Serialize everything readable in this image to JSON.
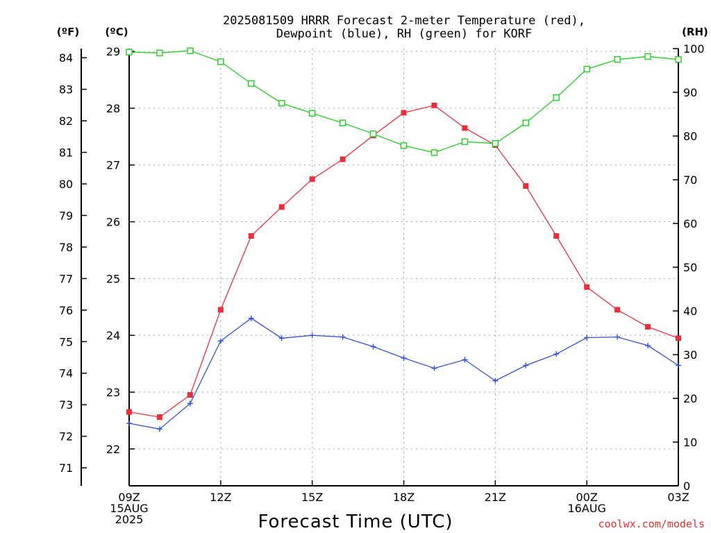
{
  "chart_data": {
    "type": "line",
    "title_line1": "2025081509 HRRR Forecast 2-meter Temperature (red),",
    "title_line2": "Dewpoint (blue), RH (green) for KORF",
    "xlabel": "Forecast Time (UTC)",
    "credit": "coolwx.com/models",
    "units": {
      "f": "(ºF)",
      "c": "(ºC)",
      "rh": "(RH)"
    },
    "x_hours": [
      0,
      1,
      2,
      3,
      4,
      5,
      6,
      7,
      8,
      9,
      10,
      11,
      12,
      13,
      14,
      15,
      16,
      17,
      18
    ],
    "x_ticks": [
      {
        "hour": 0,
        "lines": [
          "09Z",
          "15AUG",
          "2025"
        ]
      },
      {
        "hour": 3,
        "lines": [
          "12Z"
        ]
      },
      {
        "hour": 6,
        "lines": [
          "15Z"
        ]
      },
      {
        "hour": 9,
        "lines": [
          "18Z"
        ]
      },
      {
        "hour": 12,
        "lines": [
          "21Z"
        ]
      },
      {
        "hour": 15,
        "lines": [
          "00Z",
          "16AUG"
        ]
      },
      {
        "hour": 18,
        "lines": [
          "03Z"
        ]
      }
    ],
    "xlim": [
      0,
      18
    ],
    "ylim_c": [
      21.35,
      29.05
    ],
    "yticks_c": [
      22,
      23,
      24,
      25,
      26,
      27,
      28,
      29
    ],
    "yticks_f": [
      71,
      72,
      73,
      74,
      75,
      76,
      77,
      78,
      79,
      80,
      81,
      82,
      83,
      84
    ],
    "ylim_rh": [
      0,
      100
    ],
    "yticks_rh": [
      0,
      10,
      20,
      30,
      40,
      50,
      60,
      70,
      80,
      90,
      100
    ],
    "grid": true,
    "series": [
      {
        "key": "temperature",
        "axis": "c",
        "color": "#e8303c",
        "marker": "filled-square",
        "values": [
          22.65,
          22.56,
          22.95,
          24.45,
          25.75,
          26.26,
          26.75,
          27.1,
          27.52,
          27.92,
          28.05,
          27.65,
          27.35,
          26.63,
          25.75,
          24.85,
          24.45,
          24.15,
          23.95
        ]
      },
      {
        "key": "dewpoint",
        "axis": "c",
        "color": "#3050e0",
        "marker": "plus",
        "values": [
          22.45,
          22.35,
          22.8,
          23.9,
          24.3,
          23.95,
          24.0,
          23.97,
          23.8,
          23.6,
          23.42,
          23.57,
          23.2,
          23.47,
          23.67,
          23.96,
          23.97,
          23.82,
          23.47
        ]
      },
      {
        "key": "rh",
        "axis": "rh",
        "color": "#22cc22",
        "marker": "open-square",
        "values": [
          99.2,
          99.0,
          99.5,
          97.0,
          92.0,
          87.5,
          85.2,
          83.0,
          80.5,
          77.8,
          76.2,
          78.7,
          78.3,
          83.0,
          88.8,
          95.3,
          97.5,
          98.2,
          97.5
        ]
      }
    ]
  }
}
